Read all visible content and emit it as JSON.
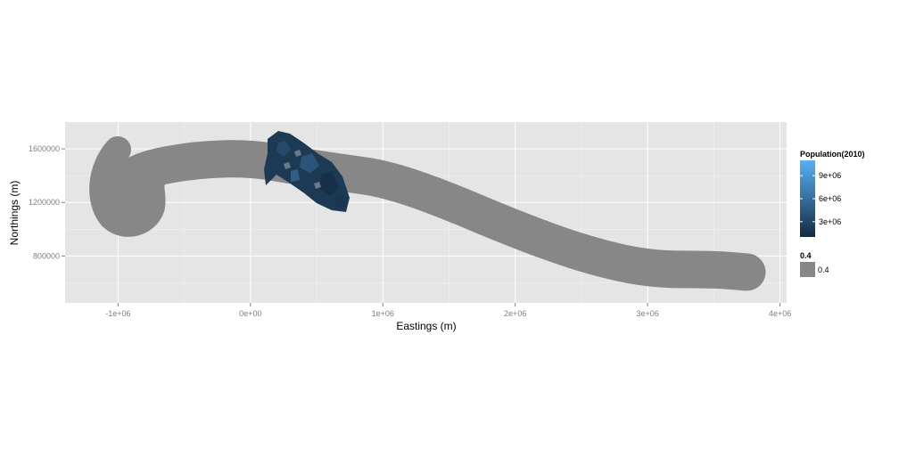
{
  "chart_data": {
    "type": "map",
    "xlabel": "Eastings (m)",
    "ylabel": "Northings (m)",
    "xlim": [
      -1400000,
      4050000
    ],
    "ylim": [
      450000,
      1800000
    ],
    "x_ticks": [
      {
        "value": -1000000,
        "label": "-1e+06"
      },
      {
        "value": 0,
        "label": "0e+00"
      },
      {
        "value": 1000000,
        "label": "1e+06"
      },
      {
        "value": 2000000,
        "label": "2e+06"
      },
      {
        "value": 3000000,
        "label": "3e+06"
      },
      {
        "value": 4000000,
        "label": "4e+06"
      }
    ],
    "y_ticks": [
      {
        "value": 800000,
        "label": "800000"
      },
      {
        "value": 1200000,
        "label": "1200000"
      },
      {
        "value": 1600000,
        "label": "1600000"
      }
    ],
    "grid": true,
    "panel_color": "#e5e5e5",
    "buffer": {
      "color": "#878787",
      "value": 0.4,
      "description": "gray buffered corridor along transect",
      "path": [
        [
          -1000000,
          1150000
        ],
        [
          -950000,
          1350000
        ],
        [
          -800000,
          1450000
        ],
        [
          -400000,
          1520000
        ],
        [
          0,
          1530000
        ],
        [
          300000,
          1480000
        ],
        [
          700000,
          1420000
        ],
        [
          1000000,
          1380000
        ],
        [
          1400000,
          1250000
        ],
        [
          2000000,
          1000000
        ],
        [
          2500000,
          820000
        ],
        [
          3000000,
          700000
        ],
        [
          3500000,
          700000
        ],
        [
          3750000,
          680000
        ]
      ]
    },
    "population_region": {
      "color_low": "#132b43",
      "color_high": "#56b1f7",
      "extent_x": [
        150000,
        800000
      ],
      "extent_y": [
        1150000,
        1720000
      ]
    },
    "legends": [
      {
        "title": "Population(2010)",
        "type": "colorbar",
        "low_color": "#132b43",
        "high_color": "#56b1f7",
        "range": [
          1000000,
          11000000
        ],
        "ticks": [
          {
            "value": 3000000,
            "label": "3e+06"
          },
          {
            "value": 6000000,
            "label": "6e+06"
          },
          {
            "value": 9000000,
            "label": "9e+06"
          }
        ]
      },
      {
        "title": "0.4",
        "type": "key",
        "items": [
          {
            "label": "0.4",
            "color": "#878787"
          }
        ]
      }
    ]
  }
}
